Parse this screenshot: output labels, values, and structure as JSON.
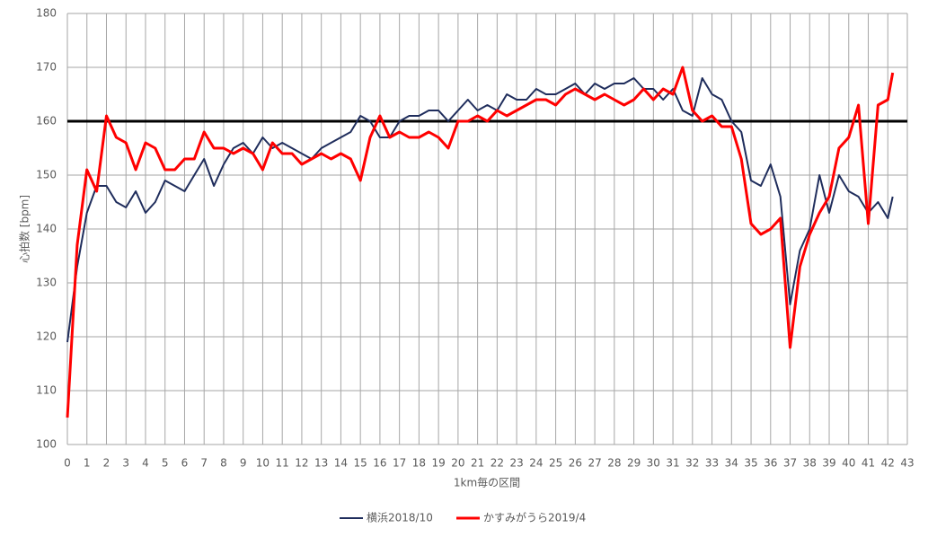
{
  "chart_data": {
    "type": "line",
    "xlabel": "1km毎の区間",
    "ylabel": "心拍数 [bpm]",
    "x": [
      0,
      0.5,
      1,
      1.5,
      2,
      2.5,
      3,
      3.5,
      4,
      4.5,
      5,
      5.5,
      6,
      6.5,
      7,
      7.5,
      8,
      8.5,
      9,
      9.5,
      10,
      10.5,
      11,
      11.5,
      12,
      12.5,
      13,
      13.5,
      14,
      14.5,
      15,
      15.5,
      16,
      16.5,
      17,
      17.5,
      18,
      18.5,
      19,
      19.5,
      20,
      20.5,
      21,
      21.5,
      22,
      22.5,
      23,
      23.5,
      24,
      24.5,
      25,
      25.5,
      26,
      26.5,
      27,
      27.5,
      28,
      28.5,
      29,
      29.5,
      30,
      30.5,
      31,
      31.5,
      32,
      32.5,
      33,
      33.5,
      34,
      34.5,
      35,
      35.5,
      36,
      36.5,
      37,
      37.5,
      38,
      38.5,
      39,
      39.5,
      40,
      40.5,
      41,
      41.5,
      42,
      42.25
    ],
    "series": [
      {
        "name": "横浜2018/10",
        "color": "#1f2d5c",
        "width": 2,
        "values": [
          119,
          133,
          143,
          148,
          148,
          145,
          144,
          147,
          143,
          145,
          149,
          148,
          147,
          150,
          153,
          148,
          152,
          155,
          156,
          154,
          157,
          155,
          156,
          155,
          154,
          153,
          155,
          156,
          157,
          158,
          161,
          160,
          157,
          157,
          160,
          161,
          161,
          162,
          162,
          160,
          162,
          164,
          162,
          163,
          162,
          165,
          164,
          164,
          166,
          165,
          165,
          166,
          167,
          165,
          167,
          166,
          167,
          167,
          168,
          166,
          166,
          164,
          166,
          162,
          161,
          168,
          165,
          164,
          160,
          158,
          149,
          148,
          152,
          146,
          126,
          136,
          140,
          150,
          143,
          150,
          147,
          146,
          143,
          145,
          142,
          146
        ]
      },
      {
        "name": "かすみがうら2019/4",
        "color": "#ff0000",
        "width": 3,
        "values": [
          105,
          137,
          151,
          147,
          161,
          157,
          156,
          151,
          156,
          155,
          151,
          151,
          153,
          153,
          158,
          155,
          155,
          154,
          155,
          154,
          151,
          156,
          154,
          154,
          152,
          153,
          154,
          153,
          154,
          153,
          149,
          157,
          161,
          157,
          158,
          157,
          157,
          158,
          157,
          155,
          160,
          160,
          161,
          160,
          162,
          161,
          162,
          163,
          164,
          164,
          163,
          165,
          166,
          165,
          164,
          165,
          164,
          163,
          164,
          166,
          164,
          166,
          165,
          170,
          162,
          160,
          161,
          159,
          159,
          153,
          141,
          139,
          140,
          142,
          118,
          133,
          139,
          143,
          146,
          155,
          157,
          163,
          141,
          163,
          164,
          169
        ]
      }
    ],
    "reference_line": 160,
    "xlim": [
      0,
      43
    ],
    "xticks": [
      0,
      1,
      2,
      3,
      4,
      5,
      6,
      7,
      8,
      9,
      10,
      11,
      12,
      13,
      14,
      15,
      16,
      17,
      18,
      19,
      20,
      21,
      22,
      23,
      24,
      25,
      26,
      27,
      28,
      29,
      30,
      31,
      32,
      33,
      34,
      35,
      36,
      37,
      38,
      39,
      40,
      41,
      42,
      43
    ],
    "ylim": [
      100,
      180
    ],
    "yticks": [
      100,
      110,
      120,
      130,
      140,
      150,
      160,
      170,
      180
    ],
    "grid": true,
    "legend": "bottom"
  }
}
